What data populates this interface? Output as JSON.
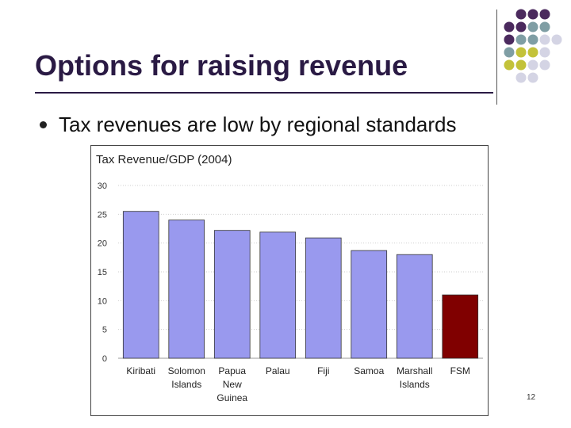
{
  "slide": {
    "title": "Options for raising revenue",
    "bullet": "Tax revenues are low by regional standards",
    "slide_number": "12"
  },
  "decor": {
    "dot_colors": [
      "#4b2a5e",
      "#7f9ea4",
      "#c3c23a",
      "#d4d4e4"
    ]
  },
  "chart_data": {
    "type": "bar",
    "title": "Tax Revenue/GDP (2004)",
    "xlabel": "",
    "ylabel": "",
    "categories": [
      "Kiribati",
      "Solomon Islands",
      "Papua New Guinea",
      "Palau",
      "Fiji",
      "Samoa",
      "Marshall Islands",
      "FSM"
    ],
    "category_lines": [
      [
        "Kiribati"
      ],
      [
        "Solomon",
        "Islands"
      ],
      [
        "Papua",
        "New",
        "Guinea"
      ],
      [
        "Palau"
      ],
      [
        "Fiji"
      ],
      [
        "Samoa"
      ],
      [
        "Marshall",
        "Islands"
      ],
      [
        "FSM"
      ]
    ],
    "values": [
      25.5,
      24,
      22.2,
      21.9,
      20.9,
      18.7,
      18,
      11
    ],
    "ylim": [
      0,
      30
    ],
    "yticks": [
      0,
      5,
      10,
      15,
      20,
      25,
      30
    ],
    "grid": true,
    "legend": "none",
    "bar_color": "#9999ee",
    "highlight_color": "#800000",
    "highlight_index": 7
  }
}
